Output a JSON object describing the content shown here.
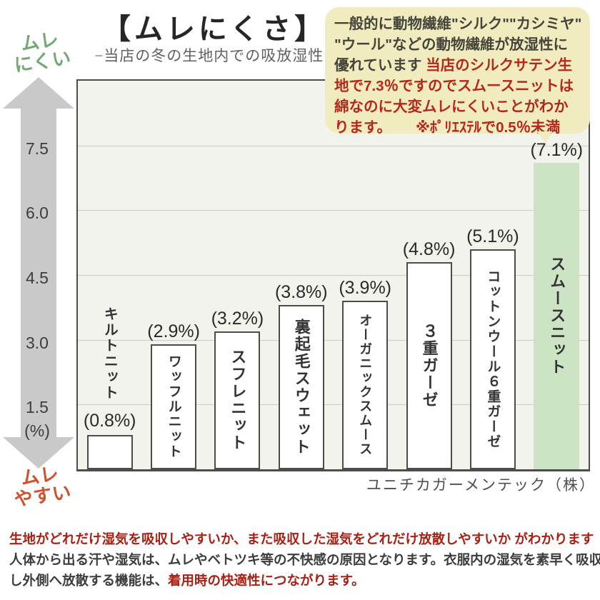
{
  "page": {
    "title": "【ムレにくさ】",
    "subtitle": "−当店の冬の生地内での吸放湿性 -"
  },
  "bubble": {
    "lines": [
      {
        "parts": [
          {
            "text": "一般的に動物繊維\"シルク\"\"カシミヤ\"",
            "red": false
          }
        ]
      },
      {
        "parts": [
          {
            "text": "\"ウール\"などの動物繊維が放湿性に",
            "red": false
          }
        ]
      },
      {
        "parts": [
          {
            "text": "優れています ",
            "red": false
          },
          {
            "text": "当店のシルクサテン生",
            "red": true
          }
        ]
      },
      {
        "parts": [
          {
            "text": "地で7.3％ですのでスムースニットは",
            "red": true
          }
        ]
      },
      {
        "parts": [
          {
            "text": "綿なのに大変ムレにくいことがわか",
            "red": true
          }
        ]
      },
      {
        "parts": [
          {
            "text": "ります。",
            "red": true
          },
          {
            "text": "※ﾎﾟﾘｴｽﾃﾙで0.5％未満",
            "red": true,
            "note": true
          }
        ]
      }
    ]
  },
  "arrow": {
    "top": [
      "ムレ",
      "にくい"
    ],
    "bottom": [
      "ムレ",
      "やすい"
    ]
  },
  "chart_data": {
    "type": "bar",
    "title": "【ムレにくさ】",
    "subtitle": "−当店の冬の生地内での吸放湿性 -",
    "categories": [
      "キルトニット",
      "ワッフルニット",
      "スフレニット",
      "裏起毛スウェット",
      "オーガニックスムース",
      "３重ガーゼ",
      "コットンウール６重ガーゼ",
      "スムースニット"
    ],
    "values": [
      0.8,
      2.9,
      3.2,
      3.8,
      3.9,
      4.8,
      5.1,
      7.1
    ],
    "value_labels": [
      "(0.8%)",
      "(2.9%)",
      "(3.2%)",
      "(3.8%)",
      "(3.9%)",
      "(4.8%)",
      "(5.1%)",
      "(7.1%)"
    ],
    "ylabel": "(%)",
    "ylim": [
      0,
      9
    ],
    "yticks": [
      1.5,
      3.0,
      4.5,
      6.0,
      7.5
    ],
    "ytick_labels": [
      "1.5",
      "3.0",
      "4.5",
      "6.0",
      "7.5"
    ],
    "grid": true,
    "legend": false,
    "highlight_index": 7,
    "axis_direction_labels": {
      "top": "ムレにくい",
      "bottom": "ムレやすい"
    },
    "source": "ユニチカガーメンテック（株）"
  },
  "footer": {
    "lines": [
      {
        "parts": [
          {
            "text": "生地がどれだけ湿気を吸収しやすいか、また吸収した湿気をどれだけ放散しやすいか がわかります",
            "red": true
          }
        ]
      },
      {
        "parts": [
          {
            "text": "人体から出る汗や湿気は、ムレやベトツキ等の不快感の原因となります。衣服内の湿気を素早く吸収",
            "red": false
          }
        ]
      },
      {
        "parts": [
          {
            "text": "し外側へ放散する機能は、",
            "red": false
          },
          {
            "text": "着用時の快適性につながります。",
            "red": true
          }
        ]
      }
    ]
  },
  "colors": {
    "plot_bg": "#f3f3ee",
    "grid": "#ccccc5",
    "bar_fill": "#ffffff",
    "bar_border": "#4c4c48",
    "highlight_bar": "#c9e3c1",
    "arrow": "#c9c9c9",
    "label_green": "#74a874",
    "label_orange": "#d1512c",
    "red_text": "#b3281b",
    "bubble_bg": "#f1ebc0"
  }
}
